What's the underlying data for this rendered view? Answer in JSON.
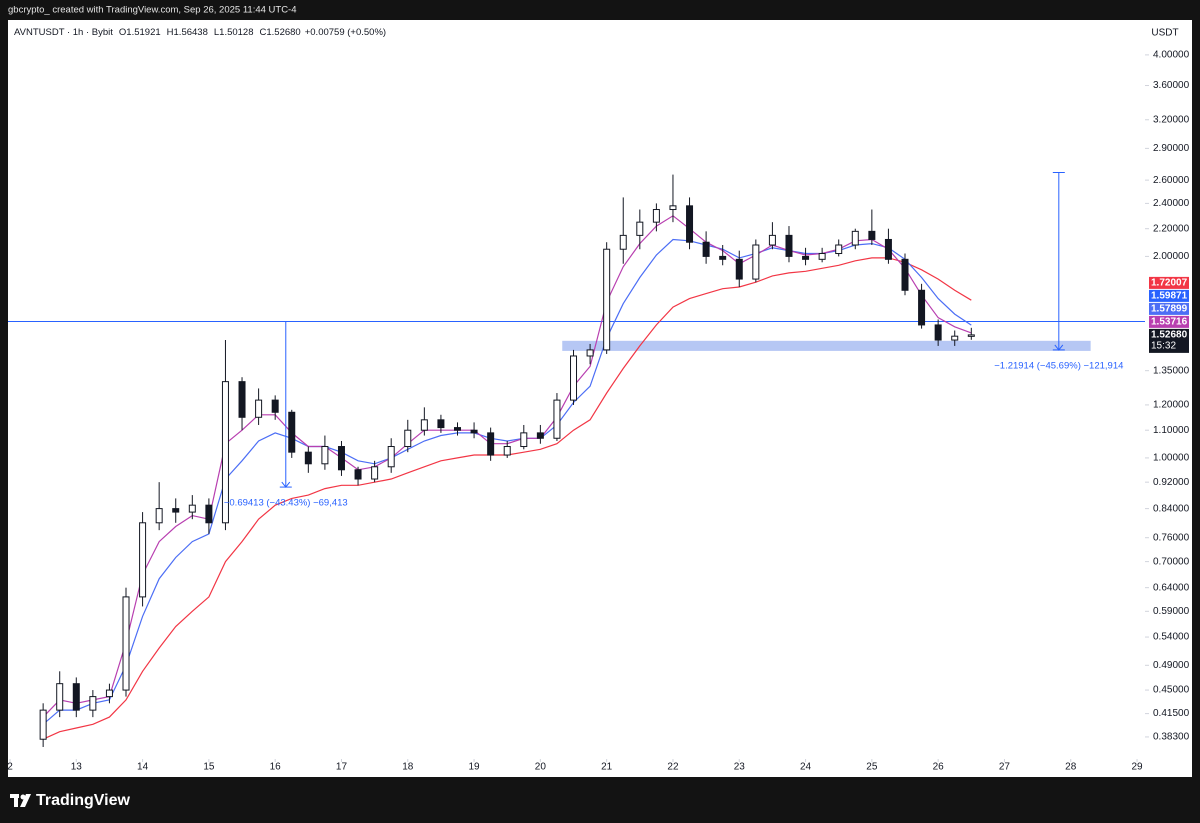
{
  "chart_data": {
    "type": "candlestick",
    "attribution": "gbcrypto_ created with TradingView.com, Sep 26, 2025 11:44 UTC-4",
    "brand": "TradingView",
    "header": {
      "symbol": "AVNTUSDT · 1h · Bybit",
      "ohlc": [
        {
          "key": "O",
          "value": "1.51921"
        },
        {
          "key": "H",
          "value": "1.56438"
        },
        {
          "key": "L",
          "value": "1.50128"
        },
        {
          "key": "C",
          "value": "1.52680"
        }
      ],
      "change": "+0.00759 (+0.50%)"
    },
    "currency": "USDT",
    "y_scale": "log",
    "xlim": [
      11.97,
      29.12
    ],
    "ylim": [
      0.336,
      4.51
    ],
    "xticks": [
      {
        "value": 12,
        "label": "2"
      },
      13,
      14,
      15,
      16,
      17,
      18,
      19,
      20,
      21,
      22,
      23,
      24,
      25,
      26,
      27,
      28,
      29
    ],
    "yticks": [
      {
        "value": 4.0,
        "label": "4.00000"
      },
      {
        "value": 3.6,
        "label": "3.60000"
      },
      {
        "value": 3.2,
        "label": "3.20000"
      },
      {
        "value": 2.9,
        "label": "2.90000"
      },
      {
        "value": 2.6,
        "label": "2.60000"
      },
      {
        "value": 2.4,
        "label": "2.40000"
      },
      {
        "value": 2.2,
        "label": "2.20000"
      },
      {
        "value": 2.0,
        "label": "2.00000"
      },
      {
        "value": 1.35,
        "label": "1.35000"
      },
      {
        "value": 1.2,
        "label": "1.20000"
      },
      {
        "value": 1.1,
        "label": "1.10000"
      },
      {
        "value": 1.0,
        "label": "1.00000"
      },
      {
        "value": 0.92,
        "label": "0.92000"
      },
      {
        "value": 0.84,
        "label": "0.84000"
      },
      {
        "value": 0.76,
        "label": "0.76000"
      },
      {
        "value": 0.7,
        "label": "0.70000"
      },
      {
        "value": 0.64,
        "label": "0.64000"
      },
      {
        "value": 0.59,
        "label": "0.59000"
      },
      {
        "value": 0.54,
        "label": "0.54000"
      },
      {
        "value": 0.49,
        "label": "0.49000"
      },
      {
        "value": 0.45,
        "label": "0.45000"
      },
      {
        "value": 0.415,
        "label": "0.41500"
      },
      {
        "value": 0.383,
        "label": "0.38300"
      }
    ],
    "x": [
      12.5,
      12.75,
      13,
      13.25,
      13.5,
      13.75,
      14,
      14.25,
      14.5,
      14.75,
      15,
      15.25,
      15.5,
      15.75,
      16,
      16.25,
      16.5,
      16.75,
      17,
      17.25,
      17.5,
      17.75,
      18,
      18.25,
      18.5,
      18.75,
      19,
      19.25,
      19.5,
      19.75,
      20,
      20.25,
      20.5,
      20.75,
      21,
      21.25,
      21.5,
      21.75,
      22,
      22.25,
      22.5,
      22.75,
      23,
      23.25,
      23.5,
      23.75,
      24,
      24.25,
      24.5,
      24.75,
      25,
      25.25,
      25.5,
      25.75,
      26,
      26.25,
      26.5
    ],
    "open": [
      0.38,
      0.42,
      0.46,
      0.42,
      0.44,
      0.45,
      0.62,
      0.8,
      0.84,
      0.83,
      0.85,
      0.8,
      1.3,
      1.15,
      1.22,
      1.17,
      1.02,
      0.98,
      1.04,
      0.96,
      0.93,
      0.97,
      1.04,
      1.1,
      1.14,
      1.11,
      1.1,
      1.09,
      1.01,
      1.04,
      1.09,
      1.07,
      1.22,
      1.42,
      1.45,
      2.05,
      2.15,
      2.25,
      2.35,
      2.38,
      2.1,
      2.0,
      1.98,
      1.85,
      2.08,
      2.15,
      2.0,
      1.98,
      2.02,
      2.08,
      2.18,
      2.12,
      1.98,
      1.78,
      1.58,
      1.5,
      1.51921
    ],
    "high": [
      0.43,
      0.48,
      0.47,
      0.45,
      0.46,
      0.64,
      0.83,
      0.92,
      0.87,
      0.88,
      0.87,
      1.5,
      1.32,
      1.27,
      1.24,
      1.18,
      1.04,
      1.08,
      1.06,
      0.97,
      0.99,
      1.07,
      1.14,
      1.19,
      1.16,
      1.13,
      1.13,
      1.11,
      1.06,
      1.12,
      1.12,
      1.25,
      1.45,
      1.48,
      2.1,
      2.45,
      2.35,
      2.4,
      2.65,
      2.45,
      2.18,
      2.08,
      2.04,
      2.12,
      2.25,
      2.22,
      2.06,
      2.06,
      2.12,
      2.2,
      2.35,
      2.2,
      2.02,
      1.82,
      1.61,
      1.55,
      1.56438
    ],
    "low": [
      0.37,
      0.41,
      0.41,
      0.41,
      0.43,
      0.44,
      0.6,
      0.78,
      0.8,
      0.81,
      0.77,
      0.78,
      1.1,
      1.12,
      1.14,
      1.0,
      0.95,
      0.96,
      0.94,
      0.91,
      0.92,
      0.95,
      1.02,
      1.08,
      1.09,
      1.08,
      1.07,
      0.99,
      1.0,
      1.03,
      1.05,
      1.06,
      1.2,
      1.38,
      1.43,
      1.95,
      2.05,
      2.18,
      2.25,
      2.05,
      1.95,
      1.94,
      1.8,
      1.83,
      2.05,
      1.96,
      1.94,
      1.96,
      2.0,
      2.05,
      2.08,
      1.95,
      1.75,
      1.56,
      1.47,
      1.47,
      1.50128
    ],
    "close": [
      0.42,
      0.46,
      0.42,
      0.44,
      0.45,
      0.62,
      0.8,
      0.84,
      0.83,
      0.85,
      0.8,
      1.3,
      1.15,
      1.22,
      1.17,
      1.02,
      0.98,
      1.04,
      0.96,
      0.93,
      0.97,
      1.04,
      1.1,
      1.14,
      1.11,
      1.1,
      1.09,
      1.01,
      1.04,
      1.09,
      1.07,
      1.22,
      1.42,
      1.45,
      2.05,
      2.15,
      2.25,
      2.35,
      2.38,
      2.1,
      2.0,
      1.98,
      1.85,
      2.08,
      2.15,
      2.0,
      1.98,
      2.02,
      2.08,
      2.18,
      2.12,
      1.98,
      1.78,
      1.58,
      1.5,
      1.52,
      1.5268
    ],
    "last_price_label": "1.52680",
    "countdown": "15:32",
    "up_color": "#ffffff",
    "down_color": "#131722",
    "series": [
      {
        "color": "#f23645",
        "values": [
          0.38,
          0.39,
          0.395,
          0.4,
          0.41,
          0.435,
          0.48,
          0.52,
          0.56,
          0.59,
          0.62,
          0.7,
          0.75,
          0.81,
          0.85,
          0.87,
          0.88,
          0.9,
          0.91,
          0.91,
          0.92,
          0.93,
          0.95,
          0.97,
          0.99,
          1.0,
          1.01,
          1.01,
          1.01,
          1.02,
          1.03,
          1.05,
          1.1,
          1.14,
          1.25,
          1.36,
          1.47,
          1.58,
          1.68,
          1.73,
          1.76,
          1.79,
          1.8,
          1.83,
          1.87,
          1.89,
          1.9,
          1.92,
          1.94,
          1.97,
          1.99,
          1.99,
          1.96,
          1.91,
          1.85,
          1.78,
          1.72007
        ]
      },
      {
        "color": "#4c6ef5",
        "values": [
          0.4,
          0.42,
          0.42,
          0.43,
          0.435,
          0.49,
          0.58,
          0.66,
          0.71,
          0.75,
          0.77,
          0.93,
          0.99,
          1.06,
          1.09,
          1.07,
          1.04,
          1.04,
          1.02,
          0.99,
          0.98,
          1.0,
          1.03,
          1.06,
          1.08,
          1.09,
          1.09,
          1.07,
          1.06,
          1.07,
          1.07,
          1.12,
          1.21,
          1.28,
          1.51,
          1.7,
          1.86,
          2.01,
          2.12,
          2.11,
          2.08,
          2.05,
          1.99,
          2.02,
          2.06,
          2.04,
          2.02,
          2.02,
          2.04,
          2.08,
          2.09,
          2.06,
          1.98,
          1.86,
          1.73,
          1.64,
          1.57899
        ]
      },
      {
        "color": "#b83fb0",
        "values": [
          0.41,
          0.435,
          0.43,
          0.435,
          0.44,
          0.53,
          0.67,
          0.75,
          0.79,
          0.82,
          0.81,
          1.05,
          1.1,
          1.16,
          1.16,
          1.09,
          1.04,
          1.04,
          1.0,
          0.96,
          0.97,
          1.0,
          1.05,
          1.1,
          1.1,
          1.1,
          1.1,
          1.05,
          1.05,
          1.07,
          1.07,
          1.15,
          1.28,
          1.37,
          1.71,
          1.93,
          2.09,
          2.22,
          2.3,
          2.2,
          2.1,
          2.04,
          1.95,
          2.01,
          2.08,
          2.04,
          2.01,
          2.02,
          2.05,
          2.11,
          2.12,
          2.05,
          1.92,
          1.75,
          1.62,
          1.57,
          1.53716
        ]
      }
    ],
    "hline": {
      "value": 1.59871,
      "color": "#2962ff"
    },
    "zone": {
      "x": [
        20.33,
        28.3
      ],
      "y": [
        1.445,
        1.496
      ],
      "color": "#9db4f0"
    },
    "measures": [
      {
        "x": 16.16,
        "from": 1.59871,
        "to": 0.90458,
        "label": "−0.69413 (−43.43%) −69,413"
      },
      {
        "x": 27.82,
        "from": 2.66914,
        "to": 1.45,
        "label": "−1.21914 (−45.69%) −121,914"
      }
    ]
  }
}
